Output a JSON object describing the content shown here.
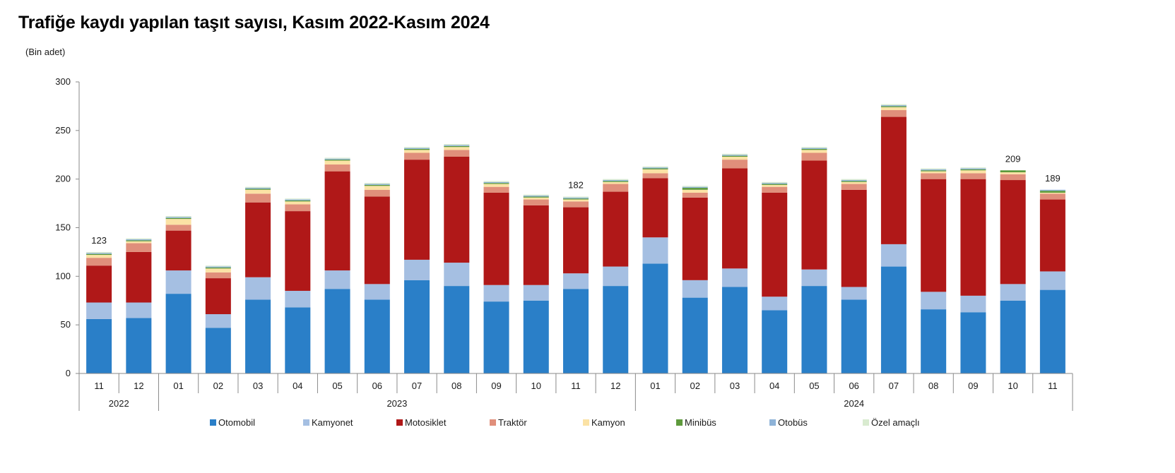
{
  "chart_data": {
    "type": "bar",
    "stacked": true,
    "title": "Trafiğe kaydı yapılan taşıt sayısı, Kasım 2022-Kasım 2024",
    "ylabel": "(Bin adet)",
    "xlabel": "",
    "ylim": [
      0,
      300
    ],
    "yticks": [
      0,
      50,
      100,
      150,
      200,
      250,
      300
    ],
    "grid": false,
    "legend_position": "bottom",
    "categories": [
      "11",
      "12",
      "01",
      "02",
      "03",
      "04",
      "05",
      "06",
      "07",
      "08",
      "09",
      "10",
      "11",
      "12",
      "01",
      "02",
      "03",
      "04",
      "05",
      "06",
      "07",
      "08",
      "09",
      "10",
      "11"
    ],
    "year_groups": [
      {
        "label": "2022",
        "count": 2
      },
      {
        "label": "2023",
        "count": 12
      },
      {
        "label": "2024",
        "count": 11
      }
    ],
    "series": [
      {
        "name": "Otomobil",
        "color": "#2a7fc8",
        "values": [
          56,
          57,
          82,
          47,
          76,
          68,
          87,
          76,
          96,
          90,
          74,
          75,
          87,
          90,
          113,
          78,
          89,
          65,
          90,
          76,
          110,
          66,
          63,
          75,
          86
        ]
      },
      {
        "name": "Kamyonet",
        "color": "#a5bfe2",
        "values": [
          17,
          16,
          24,
          14,
          23,
          17,
          19,
          16,
          21,
          24,
          17,
          16,
          16,
          20,
          27,
          18,
          19,
          14,
          17,
          13,
          23,
          18,
          17,
          17,
          19
        ]
      },
      {
        "name": "Motosiklet",
        "color": "#b01818",
        "values": [
          38,
          52,
          41,
          37,
          77,
          82,
          102,
          90,
          103,
          109,
          95,
          82,
          68,
          77,
          61,
          85,
          103,
          107,
          112,
          100,
          131,
          116,
          120,
          107,
          74
        ]
      },
      {
        "name": "Traktör",
        "color": "#e08f7b",
        "values": [
          8,
          9,
          6,
          6,
          9,
          7,
          7,
          7,
          7,
          7,
          6,
          6,
          6,
          8,
          5,
          5,
          9,
          6,
          8,
          6,
          7,
          6,
          6,
          6,
          6
        ]
      },
      {
        "name": "Kamyon",
        "color": "#fbe2a5",
        "values": [
          3,
          2,
          6,
          4,
          4,
          3,
          4,
          4,
          3,
          3,
          3,
          2,
          2,
          2,
          4,
          3,
          3,
          2,
          3,
          2,
          3,
          2,
          3,
          2,
          1
        ]
      },
      {
        "name": "Minibüs",
        "color": "#5e9a3c",
        "values": [
          1,
          1,
          1,
          1,
          1,
          1,
          1,
          1,
          1,
          1,
          1,
          1,
          1,
          1,
          1,
          2,
          1,
          1,
          1,
          1,
          1,
          1,
          1,
          2,
          2
        ]
      },
      {
        "name": "Otobüs",
        "color": "#8eb3d8",
        "values": [
          1,
          1,
          1,
          1,
          1,
          1,
          1,
          1,
          1,
          1,
          1,
          1,
          1,
          1,
          1,
          1,
          1,
          1,
          1,
          1,
          1,
          1,
          1,
          0,
          1
        ]
      },
      {
        "name": "Özel amaçlı",
        "color": "#d9ebd0",
        "values": [
          1,
          1,
          1,
          1,
          1,
          1,
          1,
          1,
          1,
          1,
          1,
          1,
          1,
          1,
          1,
          1,
          1,
          1,
          1,
          1,
          1,
          1,
          1,
          0,
          0
        ]
      }
    ],
    "annotations": [
      {
        "index": 0,
        "text": "123"
      },
      {
        "index": 12,
        "text": "182"
      },
      {
        "index": 23,
        "text": "209"
      },
      {
        "index": 24,
        "text": "189"
      }
    ]
  }
}
